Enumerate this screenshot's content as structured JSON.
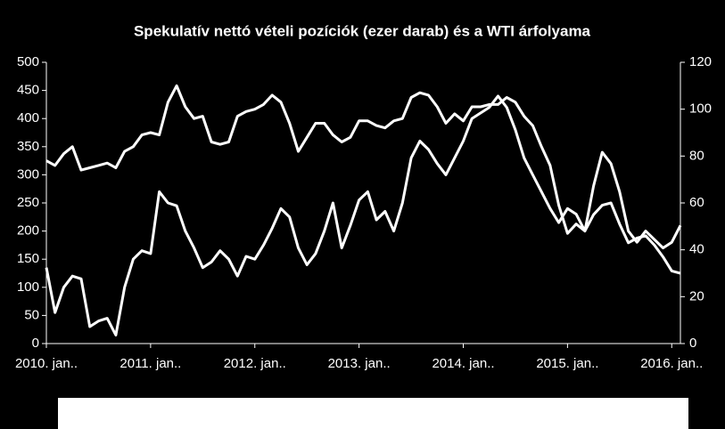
{
  "chart_data": {
    "type": "line",
    "title": "Spekulatív nettó vételi pozíciók (ezer darab) és a WTI árfolyama",
    "x": [
      "2010-01",
      "2010-02",
      "2010-03",
      "2010-04",
      "2010-05",
      "2010-06",
      "2010-07",
      "2010-08",
      "2010-09",
      "2010-10",
      "2010-11",
      "2010-12",
      "2011-01",
      "2011-02",
      "2011-03",
      "2011-04",
      "2011-05",
      "2011-06",
      "2011-07",
      "2011-08",
      "2011-09",
      "2011-10",
      "2011-11",
      "2011-12",
      "2012-01",
      "2012-02",
      "2012-03",
      "2012-04",
      "2012-05",
      "2012-06",
      "2012-07",
      "2012-08",
      "2012-09",
      "2012-10",
      "2012-11",
      "2012-12",
      "2013-01",
      "2013-02",
      "2013-03",
      "2013-04",
      "2013-05",
      "2013-06",
      "2013-07",
      "2013-08",
      "2013-09",
      "2013-10",
      "2013-11",
      "2013-12",
      "2014-01",
      "2014-02",
      "2014-03",
      "2014-04",
      "2014-05",
      "2014-06",
      "2014-07",
      "2014-08",
      "2014-09",
      "2014-10",
      "2014-11",
      "2014-12",
      "2015-01",
      "2015-02",
      "2015-03",
      "2015-04",
      "2015-05",
      "2015-06",
      "2015-07",
      "2015-08",
      "2015-09",
      "2015-10",
      "2015-11",
      "2015-12",
      "2016-01",
      "2016-02"
    ],
    "series": [
      {
        "color": "#ffffff",
        "values": [
          135,
          55,
          100,
          120,
          115,
          30,
          40,
          45,
          15,
          100,
          150,
          165,
          160,
          270,
          250,
          245,
          200,
          170,
          135,
          145,
          165,
          150,
          120,
          155,
          150,
          175,
          205,
          240,
          225,
          170,
          140,
          160,
          200,
          250,
          170,
          210,
          255,
          270,
          220,
          235,
          200,
          250,
          330,
          360,
          345,
          320,
          300,
          330,
          360,
          400,
          410,
          420,
          440,
          420,
          380,
          330,
          300,
          270,
          240,
          215,
          240,
          230,
          200,
          280,
          340,
          320,
          270,
          200,
          180,
          200,
          185,
          170,
          180,
          210
        ]
      },
      {
        "color": "#ffffff",
        "axis": "y2",
        "values": [
          78,
          76,
          81,
          84,
          74,
          75,
          76,
          77,
          75,
          82,
          84,
          89,
          90,
          89,
          103,
          110,
          101,
          96,
          97,
          86,
          85,
          86,
          97,
          99,
          100,
          102,
          106,
          103,
          94,
          82,
          88,
          94,
          94,
          89,
          86,
          88,
          95,
          95,
          93,
          92,
          95,
          96,
          105,
          107,
          106,
          101,
          94,
          98,
          95,
          101,
          101,
          102,
          102,
          105,
          103,
          97,
          93,
          84,
          76,
          59,
          47,
          51,
          48,
          55,
          59,
          60,
          51,
          43,
          45,
          46,
          42,
          37,
          31,
          30
        ]
      }
    ],
    "xlim": [
      "2010-01",
      "2016-02"
    ],
    "xticks": [
      {
        "value": "2010-01",
        "label": "2010. jan.."
      },
      {
        "value": "2011-01",
        "label": "2011. jan.."
      },
      {
        "value": "2012-01",
        "label": "2012. jan.."
      },
      {
        "value": "2013-01",
        "label": "2013. jan.."
      },
      {
        "value": "2014-01",
        "label": "2014. jan.."
      },
      {
        "value": "2015-01",
        "label": "2015. jan.."
      },
      {
        "value": "2016-01",
        "label": "2016. jan.."
      }
    ],
    "ylim": [
      0,
      500
    ],
    "yticks": [
      0,
      50,
      100,
      150,
      200,
      250,
      300,
      350,
      400,
      450,
      500
    ],
    "y2lim": [
      0,
      120
    ],
    "y2ticks": [
      0,
      20,
      40,
      60,
      80,
      100,
      120
    ],
    "grid": false
  }
}
